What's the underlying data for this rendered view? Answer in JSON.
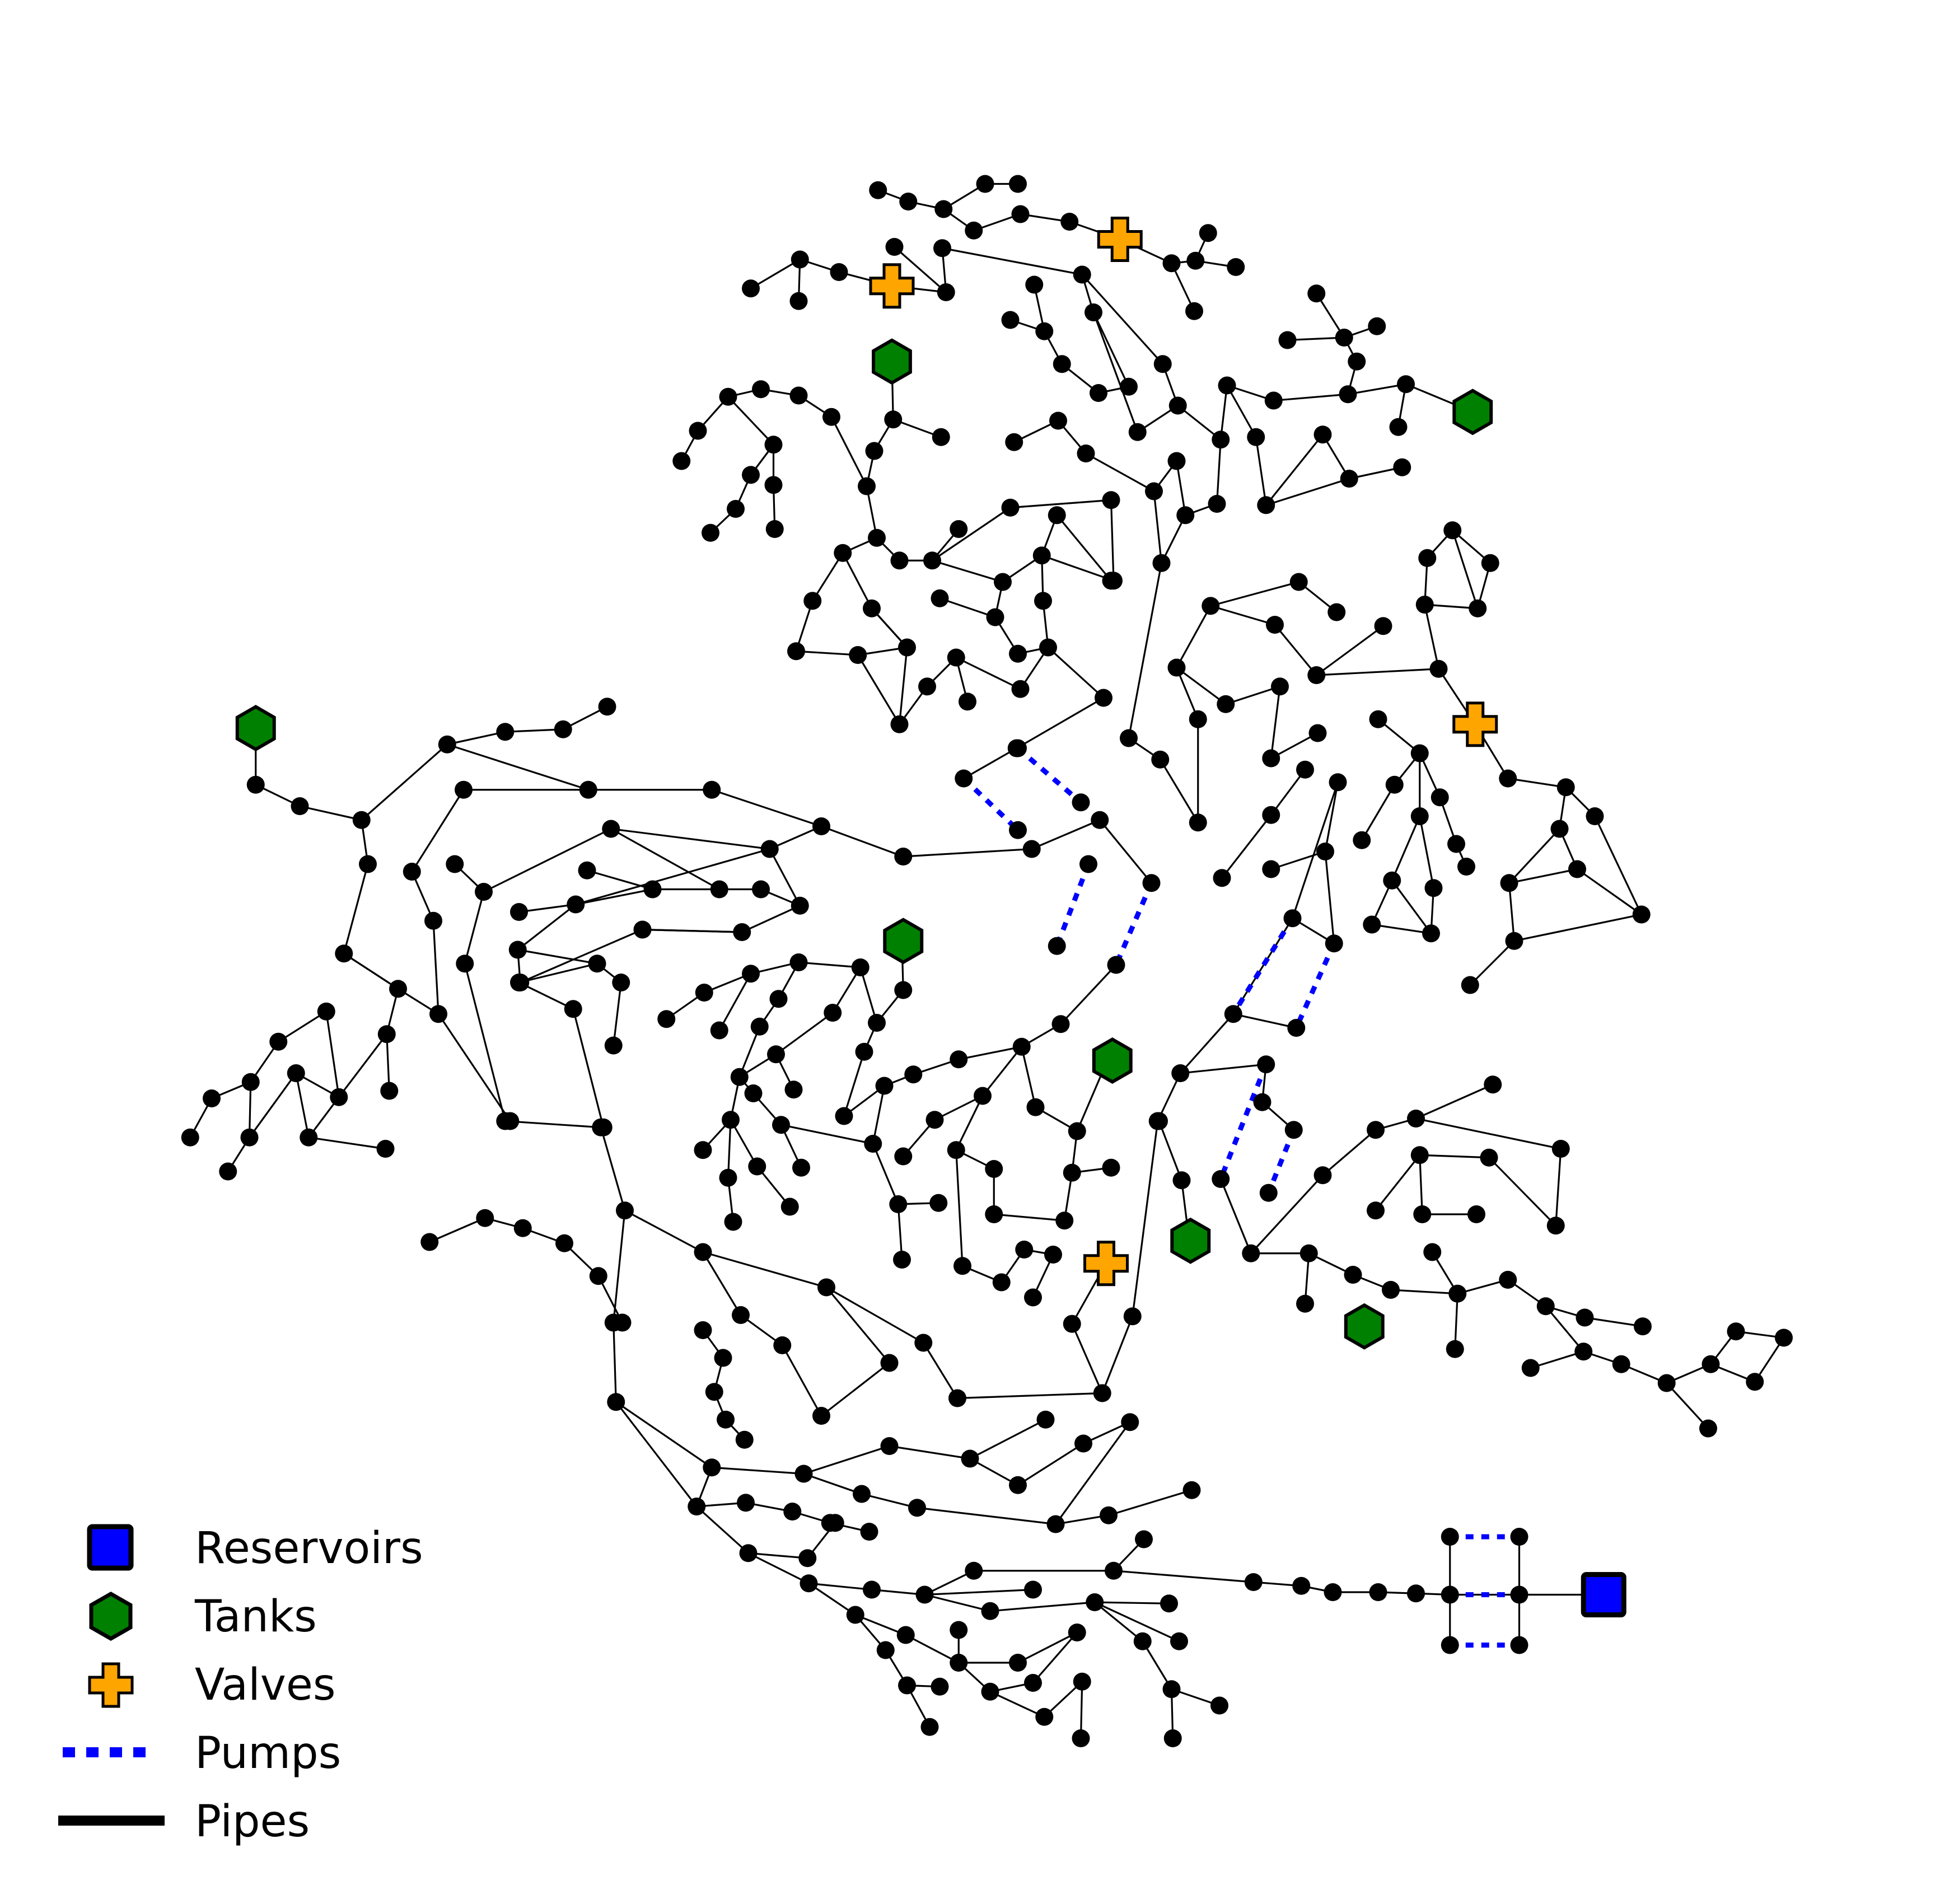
{
  "colors": {
    "background": "#ffffff",
    "pipe": "#000000",
    "junction": "#000000",
    "pump": "#0000ff",
    "reservoir": "#0000ff",
    "tank": "#008000",
    "valve": "#ffa500",
    "outline": "#000000"
  },
  "legend": {
    "items": [
      {
        "label": "Reservoirs",
        "marker": "square-icon"
      },
      {
        "label": "Tanks",
        "marker": "hexagon-icon"
      },
      {
        "label": "Valves",
        "marker": "plus-icon"
      },
      {
        "label": "Pumps",
        "marker": "dotted-line-icon"
      },
      {
        "label": "Pipes",
        "marker": "solid-line-icon"
      }
    ]
  }
}
